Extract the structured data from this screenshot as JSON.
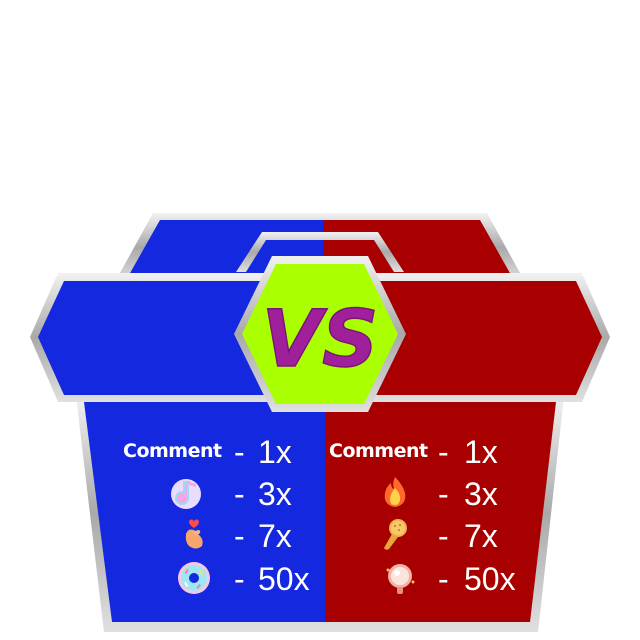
{
  "vs_label": "VS",
  "colors": {
    "team_left": "#1428e0",
    "team_right": "#a80000",
    "badge": "#aaff00",
    "vs_text": "#a0209c",
    "frame": "#c8c8c8"
  },
  "left_team": {
    "rows": [
      {
        "gift": "comment-text",
        "label": "Comment",
        "dash": "-",
        "multiplier": "1x"
      },
      {
        "gift": "music-note-icon",
        "dash": "-",
        "multiplier": "3x"
      },
      {
        "gift": "finger-heart-icon",
        "dash": "-",
        "multiplier": "7x"
      },
      {
        "gift": "donut-icon",
        "dash": "-",
        "multiplier": "50x"
      }
    ]
  },
  "right_team": {
    "rows": [
      {
        "gift": "comment-text",
        "label": "Comment",
        "dash": "-",
        "multiplier": "1x"
      },
      {
        "gift": "fire-icon",
        "dash": "-",
        "multiplier": "3x"
      },
      {
        "gift": "microphone-icon",
        "dash": "-",
        "multiplier": "7x"
      },
      {
        "gift": "mirror-icon",
        "dash": "-",
        "multiplier": "50x"
      }
    ]
  }
}
